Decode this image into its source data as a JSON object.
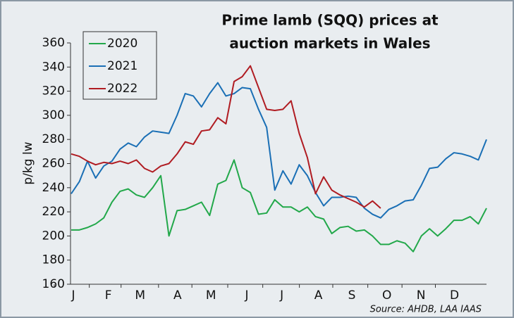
{
  "chart_data": {
    "type": "line",
    "title": [
      "Prime lamb (SQQ) prices at",
      "auction markets in Wales"
    ],
    "y_label": "p/kg lw",
    "source": "Source: AHDB, LAA IAAS",
    "x": [
      1,
      2,
      3,
      4,
      5,
      6,
      7,
      8,
      9,
      10,
      11,
      12,
      13,
      14,
      15,
      16,
      17,
      18,
      19,
      20,
      21,
      22,
      23,
      24,
      25,
      26,
      27,
      28,
      29,
      30,
      31,
      32,
      33,
      34,
      35,
      36,
      37,
      38,
      39,
      40,
      41,
      42,
      43,
      44,
      45,
      46,
      47,
      48,
      49,
      50,
      51,
      52
    ],
    "xlim": [
      1,
      52
    ],
    "xticks": [
      {
        "value": 1,
        "label": "J"
      },
      {
        "value": 5.3,
        "label": "F"
      },
      {
        "value": 9.2,
        "label": "M"
      },
      {
        "value": 13.8,
        "label": "A"
      },
      {
        "value": 17.9,
        "label": "M"
      },
      {
        "value": 22.3,
        "label": "J"
      },
      {
        "value": 26.6,
        "label": "J"
      },
      {
        "value": 31.1,
        "label": "A"
      },
      {
        "value": 35.2,
        "label": "S"
      },
      {
        "value": 39.5,
        "label": "O"
      },
      {
        "value": 43.7,
        "label": "N"
      },
      {
        "value": 47.8,
        "label": "D"
      }
    ],
    "ylim": [
      160,
      360
    ],
    "yticks": [
      160,
      180,
      200,
      220,
      240,
      260,
      280,
      300,
      320,
      340,
      360
    ],
    "legend": "upper left",
    "series": [
      {
        "name": "2020",
        "color": "#22a84a",
        "values": [
          205,
          205,
          207,
          210,
          215,
          228,
          237,
          239,
          234,
          232,
          240,
          250,
          200,
          221,
          222,
          225,
          228,
          217,
          243,
          246,
          263,
          240,
          236,
          218,
          219,
          230,
          224,
          224,
          220,
          224,
          216,
          214,
          202,
          207,
          208,
          204,
          205,
          200,
          193,
          193,
          196,
          194,
          187,
          200,
          206,
          200,
          206,
          213,
          213,
          216,
          210,
          223
        ]
      },
      {
        "name": "2021",
        "color": "#1a6fb5",
        "values": [
          235,
          245,
          262,
          248,
          258,
          262,
          272,
          277,
          274,
          282,
          287,
          286,
          285,
          300,
          318,
          316,
          307,
          318,
          327,
          316,
          318,
          323,
          322,
          305,
          290,
          238,
          254,
          243,
          259,
          250,
          236,
          225,
          232,
          232,
          233,
          232,
          223,
          218,
          215,
          222,
          225,
          229,
          230,
          242,
          256,
          257,
          264,
          269,
          268,
          266,
          263,
          280
        ]
      },
      {
        "name": "2022",
        "color": "#b01c22",
        "values": [
          268,
          266,
          262,
          259,
          261,
          260,
          262,
          260,
          263,
          256,
          253,
          258,
          260,
          268,
          278,
          276,
          287,
          288,
          298,
          293,
          328,
          332,
          341,
          323,
          305,
          304,
          305,
          312,
          285,
          265,
          235,
          249,
          238,
          234,
          231,
          228,
          224,
          229,
          223,
          null,
          null,
          null,
          null,
          null,
          null,
          null,
          null,
          null,
          null,
          null,
          null,
          null
        ]
      }
    ]
  }
}
